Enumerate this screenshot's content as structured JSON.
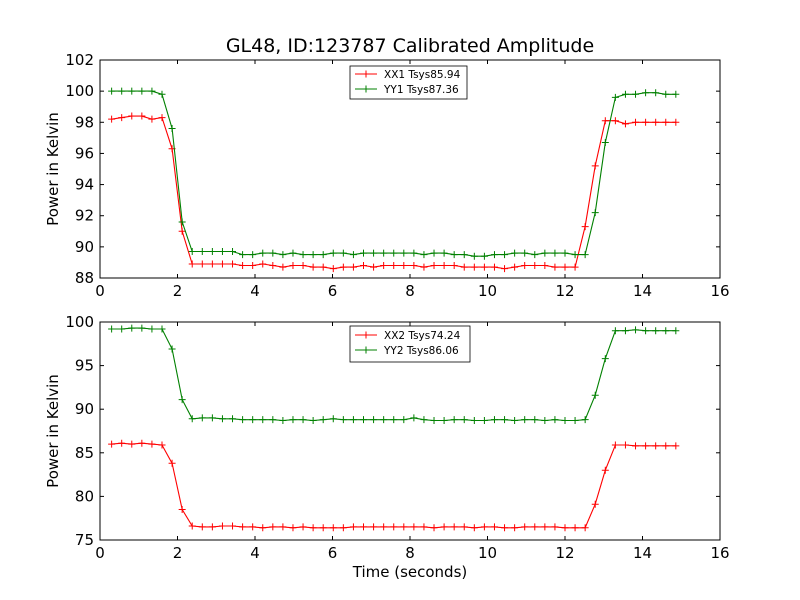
{
  "figure": {
    "title": "GL48, ID:123787 Calibrated Amplitude"
  },
  "chart_data": [
    {
      "type": "line",
      "title": "GL48, ID:123787 Calibrated Amplitude",
      "xlabel": "",
      "ylabel": "Power in Kelvin",
      "xlim": [
        0,
        16
      ],
      "ylim": [
        88,
        102
      ],
      "xticks": [
        "0",
        "2",
        "4",
        "6",
        "8",
        "10",
        "12",
        "14",
        "16"
      ],
      "yticks": [
        "88",
        "90",
        "92",
        "94",
        "96",
        "98",
        "100",
        "102"
      ],
      "xtick_values": [
        0,
        2,
        4,
        6,
        8,
        10,
        12,
        14,
        16
      ],
      "ytick_values": [
        88,
        90,
        92,
        94,
        96,
        98,
        100,
        102
      ],
      "grid": false,
      "legend_position": "top-center",
      "x": [
        0.3,
        0.56,
        0.82,
        1.08,
        1.34,
        1.6,
        1.86,
        2.12,
        2.38,
        2.64,
        2.9,
        3.16,
        3.42,
        3.68,
        3.94,
        4.2,
        4.46,
        4.72,
        4.98,
        5.24,
        5.5,
        5.76,
        6.02,
        6.28,
        6.54,
        6.8,
        7.06,
        7.32,
        7.58,
        7.84,
        8.1,
        8.36,
        8.62,
        8.88,
        9.14,
        9.4,
        9.66,
        9.92,
        10.18,
        10.44,
        10.7,
        10.96,
        11.22,
        11.48,
        11.74,
        12.0,
        12.26,
        12.52,
        12.78,
        13.04,
        13.3,
        13.56,
        13.82,
        14.08,
        14.34,
        14.6,
        14.86
      ],
      "series": [
        {
          "name": "XX1 Tsys85.94",
          "color": "#ff0000",
          "values": [
            98.2,
            98.3,
            98.4,
            98.4,
            98.2,
            98.3,
            96.3,
            91.0,
            88.9,
            88.9,
            88.9,
            88.9,
            88.9,
            88.8,
            88.8,
            88.9,
            88.8,
            88.7,
            88.8,
            88.8,
            88.7,
            88.7,
            88.6,
            88.7,
            88.7,
            88.8,
            88.7,
            88.8,
            88.8,
            88.8,
            88.8,
            88.7,
            88.8,
            88.8,
            88.8,
            88.7,
            88.7,
            88.7,
            88.7,
            88.6,
            88.7,
            88.8,
            88.8,
            88.8,
            88.7,
            88.7,
            88.7,
            91.3,
            95.2,
            98.1,
            98.1,
            97.9,
            98.0,
            98.0,
            98.0,
            98.0,
            98.0
          ]
        },
        {
          "name": "YY1 Tsys87.36",
          "color": "#008000",
          "values": [
            100.0,
            100.0,
            100.0,
            100.0,
            100.0,
            99.8,
            97.6,
            91.6,
            89.7,
            89.7,
            89.7,
            89.7,
            89.7,
            89.5,
            89.5,
            89.6,
            89.6,
            89.5,
            89.6,
            89.5,
            89.5,
            89.5,
            89.6,
            89.6,
            89.5,
            89.6,
            89.6,
            89.6,
            89.6,
            89.6,
            89.6,
            89.5,
            89.6,
            89.6,
            89.5,
            89.5,
            89.4,
            89.4,
            89.5,
            89.5,
            89.6,
            89.6,
            89.5,
            89.6,
            89.6,
            89.6,
            89.5,
            89.5,
            92.2,
            96.7,
            99.6,
            99.8,
            99.8,
            99.9,
            99.9,
            99.8,
            99.8
          ]
        }
      ]
    },
    {
      "type": "line",
      "title": "",
      "xlabel": "Time (seconds)",
      "ylabel": "Power in Kelvin",
      "xlim": [
        0,
        16
      ],
      "ylim": [
        75,
        100
      ],
      "xticks": [
        "0",
        "2",
        "4",
        "6",
        "8",
        "10",
        "12",
        "14",
        "16"
      ],
      "yticks": [
        "75",
        "80",
        "85",
        "90",
        "95",
        "100"
      ],
      "xtick_values": [
        0,
        2,
        4,
        6,
        8,
        10,
        12,
        14,
        16
      ],
      "ytick_values": [
        75,
        80,
        85,
        90,
        95,
        100
      ],
      "grid": false,
      "legend_position": "top-center",
      "x": [
        0.3,
        0.56,
        0.82,
        1.08,
        1.34,
        1.6,
        1.86,
        2.12,
        2.38,
        2.64,
        2.9,
        3.16,
        3.42,
        3.68,
        3.94,
        4.2,
        4.46,
        4.72,
        4.98,
        5.24,
        5.5,
        5.76,
        6.02,
        6.28,
        6.54,
        6.8,
        7.06,
        7.32,
        7.58,
        7.84,
        8.1,
        8.36,
        8.62,
        8.88,
        9.14,
        9.4,
        9.66,
        9.92,
        10.18,
        10.44,
        10.7,
        10.96,
        11.22,
        11.48,
        11.74,
        12.0,
        12.26,
        12.52,
        12.78,
        13.04,
        13.3,
        13.56,
        13.82,
        14.08,
        14.34,
        14.6,
        14.86
      ],
      "series": [
        {
          "name": "XX2 Tsys74.24",
          "color": "#ff0000",
          "values": [
            86.0,
            86.1,
            86.0,
            86.1,
            86.0,
            85.9,
            83.8,
            78.5,
            76.6,
            76.5,
            76.5,
            76.6,
            76.6,
            76.5,
            76.5,
            76.4,
            76.5,
            76.5,
            76.4,
            76.5,
            76.4,
            76.4,
            76.4,
            76.4,
            76.5,
            76.5,
            76.5,
            76.5,
            76.5,
            76.5,
            76.5,
            76.5,
            76.4,
            76.5,
            76.5,
            76.5,
            76.4,
            76.5,
            76.5,
            76.4,
            76.4,
            76.5,
            76.5,
            76.5,
            76.5,
            76.4,
            76.4,
            76.4,
            79.1,
            83.0,
            85.9,
            85.9,
            85.8,
            85.8,
            85.8,
            85.8,
            85.8
          ]
        },
        {
          "name": "YY2 Tsys86.06",
          "color": "#008000",
          "values": [
            99.2,
            99.2,
            99.3,
            99.3,
            99.2,
            99.2,
            96.9,
            91.1,
            88.9,
            89.0,
            89.0,
            88.9,
            88.9,
            88.8,
            88.8,
            88.8,
            88.8,
            88.7,
            88.8,
            88.8,
            88.7,
            88.8,
            88.9,
            88.8,
            88.8,
            88.8,
            88.8,
            88.8,
            88.8,
            88.8,
            89.0,
            88.8,
            88.7,
            88.7,
            88.8,
            88.8,
            88.7,
            88.7,
            88.8,
            88.8,
            88.7,
            88.8,
            88.8,
            88.7,
            88.8,
            88.7,
            88.7,
            88.8,
            91.6,
            95.8,
            99.0,
            99.0,
            99.1,
            99.0,
            99.0,
            99.0,
            99.0
          ]
        }
      ]
    }
  ]
}
